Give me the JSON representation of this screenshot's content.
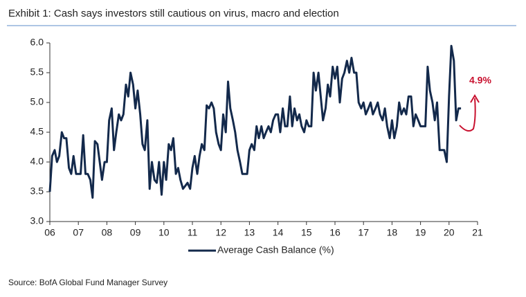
{
  "chart_data": {
    "type": "line",
    "title": "Exhibit 1: Cash says investors still cautious on virus, macro and election",
    "source": "Source: BofA Global Fund Manager Survey",
    "annotation": "4.9%",
    "xlim": [
      2006,
      2021
    ],
    "xticks": [
      {
        "value": 2006,
        "label": "06"
      },
      {
        "value": 2007,
        "label": "07"
      },
      {
        "value": 2008,
        "label": "08"
      },
      {
        "value": 2009,
        "label": "09"
      },
      {
        "value": 2010,
        "label": "10"
      },
      {
        "value": 2011,
        "label": "11"
      },
      {
        "value": 2012,
        "label": "12"
      },
      {
        "value": 2013,
        "label": "13"
      },
      {
        "value": 2014,
        "label": "14"
      },
      {
        "value": 2015,
        "label": "15"
      },
      {
        "value": 2016,
        "label": "16"
      },
      {
        "value": 2017,
        "label": "17"
      },
      {
        "value": 2018,
        "label": "18"
      },
      {
        "value": 2019,
        "label": "19"
      },
      {
        "value": 2020,
        "label": "20"
      },
      {
        "value": 2021,
        "label": "21"
      }
    ],
    "ylim": [
      3.0,
      6.0
    ],
    "yticks": [
      {
        "value": 3.0,
        "label": "3.0"
      },
      3.5,
      {
        "value": 4.0,
        "label": "4.0"
      },
      4.5,
      {
        "value": 5.0,
        "label": "5.0"
      },
      5.5,
      {
        "value": 6.0,
        "label": "6.0"
      }
    ],
    "x": [
      2006,
      2006.08,
      2006.17,
      2006.25,
      2006.33,
      2006.42,
      2006.5,
      2006.58,
      2006.67,
      2006.75,
      2006.83,
      2006.92,
      2007,
      2007.08,
      2007.17,
      2007.25,
      2007.33,
      2007.42,
      2007.5,
      2007.58,
      2007.67,
      2007.75,
      2007.83,
      2007.92,
      2008,
      2008.08,
      2008.17,
      2008.25,
      2008.33,
      2008.42,
      2008.5,
      2008.58,
      2008.67,
      2008.75,
      2008.83,
      2008.92,
      2009,
      2009.08,
      2009.17,
      2009.25,
      2009.33,
      2009.42,
      2009.5,
      2009.58,
      2009.67,
      2009.75,
      2009.83,
      2009.92,
      2010,
      2010.08,
      2010.17,
      2010.25,
      2010.33,
      2010.42,
      2010.5,
      2010.58,
      2010.67,
      2010.75,
      2010.83,
      2010.92,
      2011,
      2011.08,
      2011.17,
      2011.25,
      2011.33,
      2011.42,
      2011.5,
      2011.58,
      2011.67,
      2011.75,
      2011.83,
      2011.92,
      2012,
      2012.08,
      2012.17,
      2012.25,
      2012.33,
      2012.42,
      2012.5,
      2012.58,
      2012.67,
      2012.75,
      2012.83,
      2012.92,
      2013,
      2013.08,
      2013.17,
      2013.25,
      2013.33,
      2013.42,
      2013.5,
      2013.58,
      2013.67,
      2013.75,
      2013.83,
      2013.92,
      2014,
      2014.08,
      2014.17,
      2014.25,
      2014.33,
      2014.42,
      2014.5,
      2014.58,
      2014.67,
      2014.75,
      2014.83,
      2014.92,
      2015,
      2015.08,
      2015.17,
      2015.25,
      2015.33,
      2015.42,
      2015.5,
      2015.58,
      2015.67,
      2015.75,
      2015.83,
      2015.92,
      2016,
      2016.08,
      2016.17,
      2016.25,
      2016.33,
      2016.42,
      2016.5,
      2016.58,
      2016.67,
      2016.75,
      2016.83,
      2016.92,
      2017,
      2017.08,
      2017.17,
      2017.25,
      2017.33,
      2017.42,
      2017.5,
      2017.58,
      2017.67,
      2017.75,
      2017.83,
      2017.92,
      2018,
      2018.08,
      2018.17,
      2018.25,
      2018.33,
      2018.42,
      2018.5,
      2018.58,
      2018.67,
      2018.75,
      2018.83,
      2018.92,
      2019,
      2019.08,
      2019.17,
      2019.25,
      2019.33,
      2019.42,
      2019.5,
      2019.58,
      2019.67,
      2019.75,
      2019.83,
      2019.92,
      2020,
      2020.08,
      2020.17,
      2020.25,
      2020.33,
      2020.42
    ],
    "series": [
      {
        "name": "Average Cash Balance (%)",
        "color": "#13294b",
        "values": [
          3.5,
          4.1,
          4.2,
          4.0,
          4.1,
          4.5,
          4.4,
          4.4,
          3.9,
          3.8,
          4.1,
          3.8,
          3.8,
          3.8,
          4.45,
          3.8,
          3.8,
          3.7,
          3.4,
          4.35,
          4.3,
          4.0,
          3.7,
          4.0,
          4.0,
          4.7,
          4.9,
          4.2,
          4.5,
          4.8,
          4.7,
          4.8,
          5.3,
          5.1,
          5.5,
          5.3,
          4.9,
          5.2,
          4.8,
          4.3,
          4.2,
          4.7,
          3.55,
          4.0,
          3.7,
          3.65,
          4.0,
          3.45,
          4.0,
          3.7,
          4.3,
          4.2,
          4.4,
          3.8,
          3.9,
          3.7,
          3.55,
          3.6,
          3.65,
          3.55,
          3.9,
          4.1,
          3.8,
          4.1,
          4.3,
          4.2,
          4.95,
          4.9,
          5.0,
          4.9,
          4.5,
          4.3,
          4.2,
          4.8,
          4.5,
          5.35,
          4.9,
          4.7,
          4.5,
          4.2,
          4.0,
          3.8,
          3.8,
          3.8,
          4.2,
          4.3,
          4.2,
          4.6,
          4.4,
          4.6,
          4.4,
          4.5,
          4.6,
          4.5,
          4.7,
          4.8,
          4.8,
          4.5,
          4.9,
          4.6,
          4.6,
          5.1,
          4.6,
          4.9,
          4.7,
          4.8,
          4.6,
          4.5,
          4.7,
          4.6,
          4.6,
          5.5,
          5.2,
          5.5,
          5.1,
          4.7,
          4.9,
          5.3,
          5.1,
          5.6,
          5.4,
          5.6,
          5.0,
          5.4,
          5.5,
          5.7,
          5.5,
          5.75,
          5.5,
          5.5,
          5.0,
          4.9,
          5.0,
          4.8,
          4.9,
          5.0,
          4.8,
          4.9,
          5.0,
          4.8,
          4.7,
          4.9,
          4.6,
          4.4,
          4.7,
          4.4,
          4.6,
          5.0,
          4.8,
          4.9,
          4.8,
          5.1,
          5.1,
          4.6,
          4.8,
          4.7,
          4.6,
          4.6,
          4.6,
          5.6,
          5.2,
          5.0,
          4.7,
          5.0,
          4.2,
          4.2,
          4.2,
          4.0,
          5.1,
          5.95,
          5.7,
          4.7,
          4.9,
          4.9
        ]
      }
    ]
  }
}
